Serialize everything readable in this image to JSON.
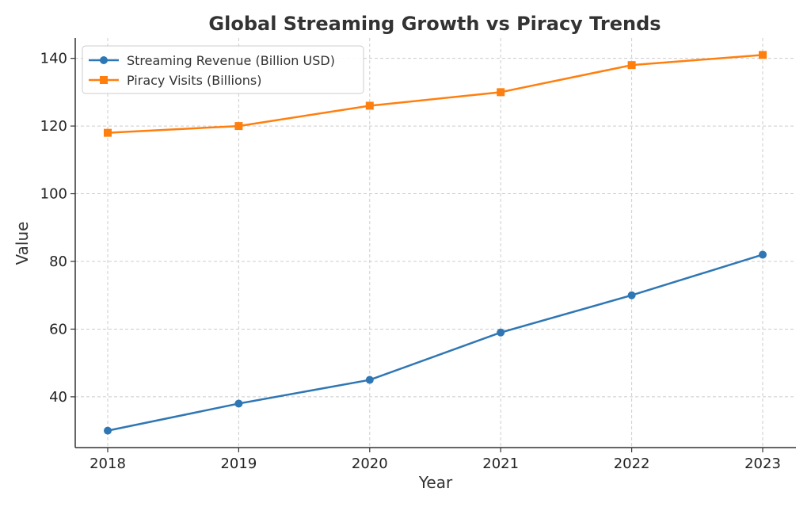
{
  "chart_data": {
    "type": "line",
    "title": "Global Streaming Growth vs Piracy Trends",
    "xlabel": "Year",
    "ylabel": "Value",
    "x": [
      "2018",
      "2019",
      "2020",
      "2021",
      "2022",
      "2023"
    ],
    "x_ticks": [
      "2018",
      "2019",
      "2020",
      "2021",
      "2022",
      "2023"
    ],
    "y_ticks": [
      "40",
      "60",
      "80",
      "100",
      "120",
      "140"
    ],
    "ylim": [
      25,
      146
    ],
    "grid": true,
    "legend_position": "top-left",
    "series": [
      {
        "name": "Streaming Revenue (Billion USD)",
        "values": [
          30,
          38,
          45,
          59,
          70,
          82
        ],
        "color": "#2f77b4",
        "marker": "circle"
      },
      {
        "name": "Piracy Visits (Billions)",
        "values": [
          118,
          120,
          126,
          130,
          138,
          141
        ],
        "color": "#ff7f0e",
        "marker": "square"
      }
    ]
  }
}
